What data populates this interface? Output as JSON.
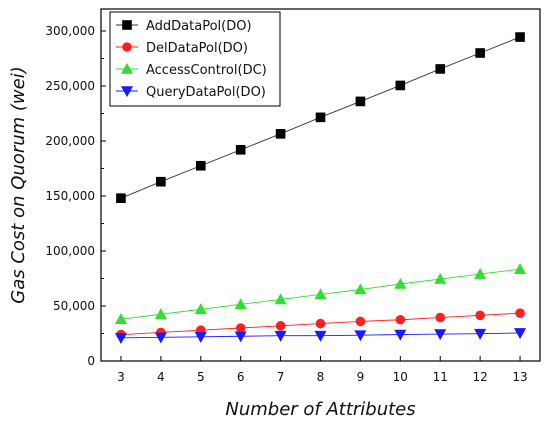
{
  "chart_data": {
    "type": "line",
    "title": "",
    "xlabel": "Number of Attributes",
    "ylabel": "Gas Cost on Quorum (wei)",
    "x": [
      3,
      4,
      5,
      6,
      7,
      8,
      9,
      10,
      11,
      12,
      13
    ],
    "x_ticks": [
      "3",
      "4",
      "5",
      "6",
      "7",
      "8",
      "9",
      "10",
      "11",
      "12",
      "13"
    ],
    "xlim": [
      2.5,
      13.5
    ],
    "ylim": [
      0,
      320000
    ],
    "y_ticks": [
      0,
      50000,
      100000,
      150000,
      200000,
      250000,
      300000
    ],
    "y_tick_labels": [
      "0",
      "50,000",
      "100,000",
      "150,000",
      "200,000",
      "250,000",
      "300,000"
    ],
    "grid": false,
    "legend": "top-left",
    "series": [
      {
        "name": "AddDataPol(DO)",
        "marker": "square",
        "color": "#000000",
        "values": [
          148000,
          163000,
          177500,
          192000,
          206500,
          221500,
          236000,
          250500,
          265500,
          280000,
          294500
        ]
      },
      {
        "name": "DelDataPol(DO)",
        "marker": "circle",
        "color": "#ff1f1f",
        "values": [
          24000,
          26000,
          28000,
          30000,
          32000,
          34000,
          36000,
          37500,
          39500,
          41500,
          43500
        ]
      },
      {
        "name": "AccessControl(DC)",
        "marker": "triangle-up",
        "color": "#33dd33",
        "values": [
          38000,
          42500,
          47000,
          51500,
          56000,
          60500,
          65000,
          70000,
          74500,
          79000,
          83500
        ]
      },
      {
        "name": "QueryDataPol(DO)",
        "marker": "triangle-down",
        "color": "#1a1aff",
        "values": [
          21000,
          21500,
          22000,
          22500,
          23000,
          23000,
          23500,
          24000,
          24500,
          24800,
          25500
        ]
      }
    ]
  }
}
